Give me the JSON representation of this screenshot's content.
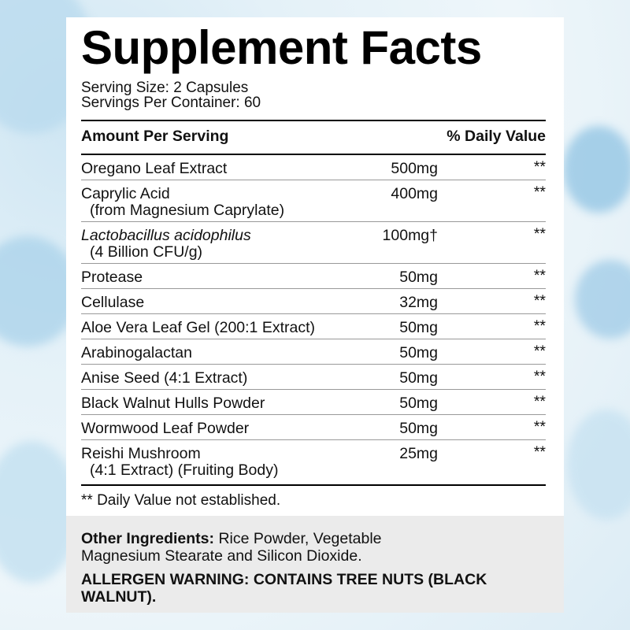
{
  "title": "Supplement Facts",
  "serving_size": "Serving Size: 2 Capsules",
  "servings_per_container": "Servings Per Container: 60",
  "header": {
    "amount": "Amount Per Serving",
    "daily_value": "% Daily Value"
  },
  "rows": [
    {
      "name": "Oregano Leaf Extract",
      "amount": "500mg",
      "dv": "**"
    },
    {
      "name": "Caprylic Acid",
      "sub": "(from Magnesium Caprylate)",
      "amount": "400mg",
      "dv": "**"
    },
    {
      "name": "Lactobacillus acidophilus",
      "italic": true,
      "sub": "(4 Billion CFU/g)",
      "amount": "100mg†",
      "dv": "**"
    },
    {
      "name": "Protease",
      "amount": "50mg",
      "dv": "**"
    },
    {
      "name": "Cellulase",
      "amount": "32mg",
      "dv": "**"
    },
    {
      "name": "Aloe Vera Leaf Gel (200:1 Extract)",
      "amount": "50mg",
      "dv": "**"
    },
    {
      "name": "Arabinogalactan",
      "amount": "50mg",
      "dv": "**"
    },
    {
      "name": "Anise Seed (4:1 Extract)",
      "amount": "50mg",
      "dv": "**"
    },
    {
      "name": "Black Walnut Hulls Powder",
      "amount": "50mg",
      "dv": "**"
    },
    {
      "name": "Wormwood Leaf Powder",
      "amount": "50mg",
      "dv": "**"
    },
    {
      "name": "Reishi Mushroom",
      "sub": "(4:1 Extract) (Fruiting Body)",
      "amount": "25mg",
      "dv": "**"
    }
  ],
  "footnote": "** Daily Value not established.",
  "other_ingredients": {
    "label": "Other Ingredients:",
    "text": "Rice Powder, Vegetable Magnesium Stearate and Silicon Dioxide."
  },
  "allergen_warning": "ALLERGEN WARNING: CONTAINS TREE NUTS (BLACK WALNUT)."
}
